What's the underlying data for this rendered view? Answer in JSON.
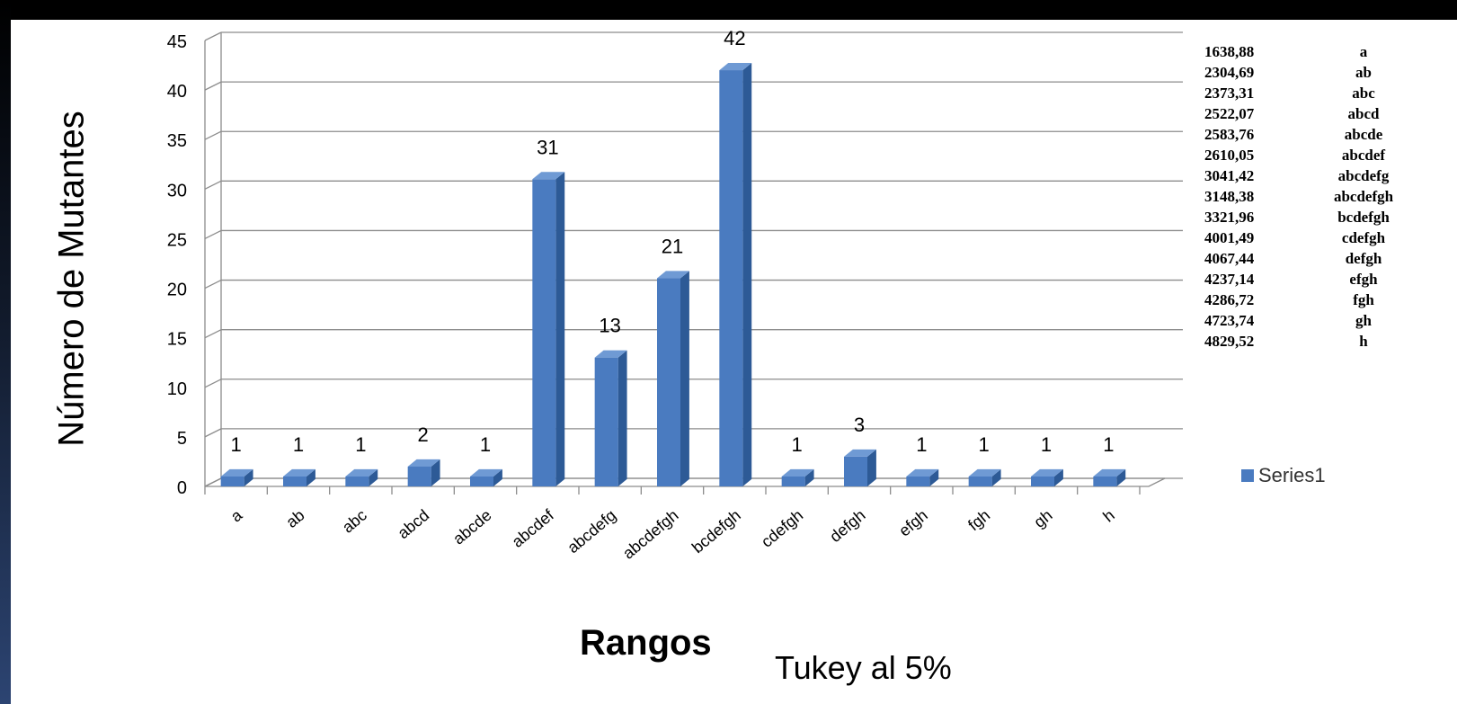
{
  "axis_label_y": "Número de Mutantes",
  "axis_label_x": "Rangos",
  "note": "Tukey al 5%",
  "legend": {
    "label": "Series1"
  },
  "ranges_table": [
    {
      "value": "1638,88",
      "label": "a"
    },
    {
      "value": "2304,69",
      "label": "ab"
    },
    {
      "value": "2373,31",
      "label": "abc"
    },
    {
      "value": "2522,07",
      "label": "abcd"
    },
    {
      "value": "2583,76",
      "label": "abcde"
    },
    {
      "value": "2610,05",
      "label": "abcdef"
    },
    {
      "value": "3041,42",
      "label": "abcdefg"
    },
    {
      "value": "3148,38",
      "label": "abcdefgh"
    },
    {
      "value": "3321,96",
      "label": "bcdefgh"
    },
    {
      "value": "4001,49",
      "label": "cdefgh"
    },
    {
      "value": "4067,44",
      "label": "defgh"
    },
    {
      "value": "4237,14",
      "label": "efgh"
    },
    {
      "value": "4286,72",
      "label": "fgh"
    },
    {
      "value": "4723,74",
      "label": "gh"
    },
    {
      "value": "4829,52",
      "label": "h"
    }
  ],
  "chart_data": {
    "type": "bar",
    "title": "",
    "xlabel": "Rangos",
    "ylabel": "Número de Mutantes",
    "categories": [
      "a",
      "ab",
      "abc",
      "abcd",
      "abcde",
      "abcdef",
      "abcdefg",
      "abcdefgh",
      "bcdefgh",
      "cdefgh",
      "defgh",
      "efgh",
      "fgh",
      "gh",
      "h"
    ],
    "series": [
      {
        "name": "Series1",
        "values": [
          1,
          1,
          1,
          2,
          1,
          31,
          13,
          21,
          42,
          1,
          3,
          1,
          1,
          1,
          1
        ]
      }
    ],
    "ylim": [
      0,
      45
    ],
    "yticks": [
      0,
      5,
      10,
      15,
      20,
      25,
      30,
      35,
      40,
      45
    ],
    "grid": true,
    "legend_position": "right",
    "colors": {
      "bar_front": "#4a7bc0",
      "bar_side": "#2d5a96",
      "bar_top": "#6f9ad4"
    }
  }
}
